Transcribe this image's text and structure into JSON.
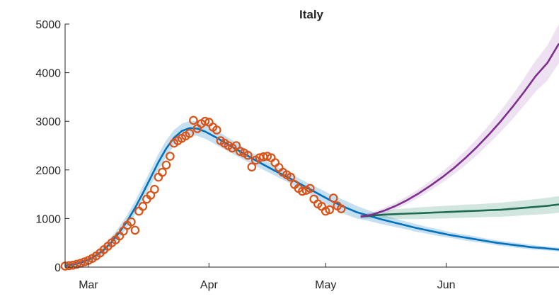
{
  "chart_data": {
    "type": "line",
    "title": "Italy",
    "xlabel": "",
    "ylabel": "",
    "x_axis": {
      "type": "date",
      "range": [
        "2020-02-24",
        "2020-06-30"
      ],
      "ticks": [
        {
          "date": "2020-03-01",
          "label": "Mar"
        },
        {
          "date": "2020-04-01",
          "label": "Apr"
        },
        {
          "date": "2020-05-01",
          "label": "May"
        },
        {
          "date": "2020-06-01",
          "label": "Jun"
        }
      ]
    },
    "y_axis": {
      "range": [
        0,
        5000
      ],
      "ticks": [
        0,
        1000,
        2000,
        3000,
        4000,
        5000
      ]
    },
    "grid": false,
    "legend": "none",
    "series": [
      {
        "kind": "scatter",
        "marker": "open-circle",
        "color": "#D95319",
        "points": [
          [
            "2020-02-24",
            20
          ],
          [
            "2020-02-25",
            30
          ],
          [
            "2020-02-26",
            40
          ],
          [
            "2020-02-27",
            60
          ],
          [
            "2020-02-28",
            80
          ],
          [
            "2020-02-29",
            110
          ],
          [
            "2020-03-01",
            140
          ],
          [
            "2020-03-02",
            180
          ],
          [
            "2020-03-03",
            230
          ],
          [
            "2020-03-04",
            290
          ],
          [
            "2020-03-05",
            360
          ],
          [
            "2020-03-06",
            430
          ],
          [
            "2020-03-07",
            500
          ],
          [
            "2020-03-08",
            560
          ],
          [
            "2020-03-09",
            640
          ],
          [
            "2020-03-10",
            740
          ],
          [
            "2020-03-11",
            860
          ],
          [
            "2020-03-12",
            930
          ],
          [
            "2020-03-13",
            760
          ],
          [
            "2020-03-14",
            1150
          ],
          [
            "2020-03-15",
            1250
          ],
          [
            "2020-03-16",
            1400
          ],
          [
            "2020-03-17",
            1480
          ],
          [
            "2020-03-18",
            1600
          ],
          [
            "2020-03-19",
            1850
          ],
          [
            "2020-03-20",
            1950
          ],
          [
            "2020-03-21",
            2100
          ],
          [
            "2020-03-22",
            2280
          ],
          [
            "2020-03-23",
            2550
          ],
          [
            "2020-03-24",
            2600
          ],
          [
            "2020-03-25",
            2650
          ],
          [
            "2020-03-26",
            2700
          ],
          [
            "2020-03-27",
            2750
          ],
          [
            "2020-03-28",
            3020
          ],
          [
            "2020-03-29",
            2850
          ],
          [
            "2020-03-30",
            2950
          ],
          [
            "2020-03-31",
            3000
          ],
          [
            "2020-04-01",
            2980
          ],
          [
            "2020-04-02",
            2880
          ],
          [
            "2020-04-03",
            2820
          ],
          [
            "2020-04-04",
            2600
          ],
          [
            "2020-04-05",
            2550
          ],
          [
            "2020-04-06",
            2500
          ],
          [
            "2020-04-07",
            2450
          ],
          [
            "2020-04-08",
            2500
          ],
          [
            "2020-04-09",
            2380
          ],
          [
            "2020-04-10",
            2350
          ],
          [
            "2020-04-11",
            2300
          ],
          [
            "2020-04-12",
            2060
          ],
          [
            "2020-04-13",
            2200
          ],
          [
            "2020-04-14",
            2250
          ],
          [
            "2020-04-15",
            2270
          ],
          [
            "2020-04-16",
            2280
          ],
          [
            "2020-04-17",
            2250
          ],
          [
            "2020-04-18",
            2150
          ],
          [
            "2020-04-19",
            2050
          ],
          [
            "2020-04-20",
            1950
          ],
          [
            "2020-04-21",
            1900
          ],
          [
            "2020-04-22",
            1850
          ],
          [
            "2020-04-23",
            1700
          ],
          [
            "2020-04-24",
            1620
          ],
          [
            "2020-04-25",
            1560
          ],
          [
            "2020-04-26",
            1580
          ],
          [
            "2020-04-27",
            1620
          ],
          [
            "2020-04-28",
            1400
          ],
          [
            "2020-04-29",
            1300
          ],
          [
            "2020-04-30",
            1250
          ],
          [
            "2020-05-01",
            1150
          ],
          [
            "2020-05-02",
            1180
          ],
          [
            "2020-05-03",
            1420
          ],
          [
            "2020-05-04",
            1260
          ],
          [
            "2020-05-05",
            1200
          ]
        ]
      },
      {
        "kind": "line",
        "color": "#0072BD",
        "band_color": "#0072BD",
        "points": [
          [
            "2020-02-24",
            30
          ],
          [
            "2020-02-26",
            50
          ],
          [
            "2020-02-28",
            90
          ],
          [
            "2020-03-01",
            150
          ],
          [
            "2020-03-03",
            240
          ],
          [
            "2020-03-05",
            360
          ],
          [
            "2020-03-07",
            520
          ],
          [
            "2020-03-09",
            720
          ],
          [
            "2020-03-11",
            950
          ],
          [
            "2020-03-13",
            1220
          ],
          [
            "2020-03-15",
            1520
          ],
          [
            "2020-03-17",
            1840
          ],
          [
            "2020-03-19",
            2160
          ],
          [
            "2020-03-21",
            2440
          ],
          [
            "2020-03-23",
            2660
          ],
          [
            "2020-03-25",
            2800
          ],
          [
            "2020-03-27",
            2860
          ],
          [
            "2020-03-29",
            2850
          ],
          [
            "2020-03-31",
            2790
          ],
          [
            "2020-04-03",
            2660
          ],
          [
            "2020-04-06",
            2520
          ],
          [
            "2020-04-09",
            2380
          ],
          [
            "2020-04-12",
            2240
          ],
          [
            "2020-04-15",
            2110
          ],
          [
            "2020-04-18",
            1980
          ],
          [
            "2020-04-21",
            1860
          ],
          [
            "2020-04-24",
            1730
          ],
          [
            "2020-04-27",
            1600
          ],
          [
            "2020-04-30",
            1470
          ],
          [
            "2020-05-03",
            1340
          ],
          [
            "2020-05-06",
            1230
          ],
          [
            "2020-05-09",
            1130
          ],
          [
            "2020-05-12",
            1060
          ],
          [
            "2020-05-15",
            990
          ],
          [
            "2020-05-18",
            930
          ],
          [
            "2020-05-21",
            870
          ],
          [
            "2020-05-24",
            810
          ],
          [
            "2020-05-27",
            760
          ],
          [
            "2020-05-30",
            710
          ],
          [
            "2020-06-02",
            660
          ],
          [
            "2020-06-05",
            620
          ],
          [
            "2020-06-08",
            580
          ],
          [
            "2020-06-11",
            540
          ],
          [
            "2020-06-14",
            500
          ],
          [
            "2020-06-17",
            470
          ],
          [
            "2020-06-20",
            440
          ],
          [
            "2020-06-23",
            410
          ],
          [
            "2020-06-26",
            390
          ],
          [
            "2020-06-30",
            360
          ]
        ],
        "band_halfwidth": [
          60,
          60,
          70,
          80,
          90,
          100,
          110,
          120,
          130,
          140,
          150,
          160,
          170,
          170,
          160,
          150,
          150,
          150,
          150,
          150,
          140,
          130,
          120,
          110,
          100,
          100,
          100,
          110,
          120,
          130,
          140,
          130,
          110,
          100,
          90,
          80,
          80,
          70,
          70,
          60,
          60,
          60,
          50,
          50,
          50,
          50,
          50,
          40,
          40
        ]
      },
      {
        "kind": "line",
        "color": "#1E6B52",
        "band_color": "#2E8B6A",
        "points": [
          [
            "2020-05-10",
            1040
          ],
          [
            "2020-05-13",
            1060
          ],
          [
            "2020-05-16",
            1080
          ],
          [
            "2020-05-19",
            1090
          ],
          [
            "2020-05-22",
            1100
          ],
          [
            "2020-05-25",
            1110
          ],
          [
            "2020-05-28",
            1120
          ],
          [
            "2020-05-31",
            1130
          ],
          [
            "2020-06-03",
            1140
          ],
          [
            "2020-06-06",
            1150
          ],
          [
            "2020-06-09",
            1160
          ],
          [
            "2020-06-12",
            1170
          ],
          [
            "2020-06-15",
            1180
          ],
          [
            "2020-06-18",
            1200
          ],
          [
            "2020-06-21",
            1220
          ],
          [
            "2020-06-24",
            1240
          ],
          [
            "2020-06-27",
            1260
          ],
          [
            "2020-06-30",
            1290
          ]
        ],
        "band_halfwidth": [
          40,
          60,
          80,
          100,
          110,
          120,
          125,
          130,
          130,
          135,
          135,
          140,
          145,
          150,
          155,
          160,
          165,
          170
        ]
      },
      {
        "kind": "line",
        "color": "#7E2F8E",
        "band_color": "#B07CC6",
        "points": [
          [
            "2020-05-10",
            1040
          ],
          [
            "2020-05-13",
            1080
          ],
          [
            "2020-05-16",
            1160
          ],
          [
            "2020-05-19",
            1260
          ],
          [
            "2020-05-22",
            1380
          ],
          [
            "2020-05-25",
            1520
          ],
          [
            "2020-05-28",
            1680
          ],
          [
            "2020-05-31",
            1850
          ],
          [
            "2020-06-03",
            2040
          ],
          [
            "2020-06-06",
            2250
          ],
          [
            "2020-06-09",
            2480
          ],
          [
            "2020-06-12",
            2730
          ],
          [
            "2020-06-15",
            3000
          ],
          [
            "2020-06-18",
            3290
          ],
          [
            "2020-06-21",
            3600
          ],
          [
            "2020-06-24",
            3930
          ],
          [
            "2020-06-27",
            4200
          ],
          [
            "2020-06-30",
            4600
          ]
        ],
        "band_halfwidth": [
          40,
          50,
          60,
          70,
          80,
          90,
          100,
          110,
          130,
          150,
          170,
          190,
          220,
          250,
          280,
          320,
          360,
          400
        ]
      }
    ]
  }
}
